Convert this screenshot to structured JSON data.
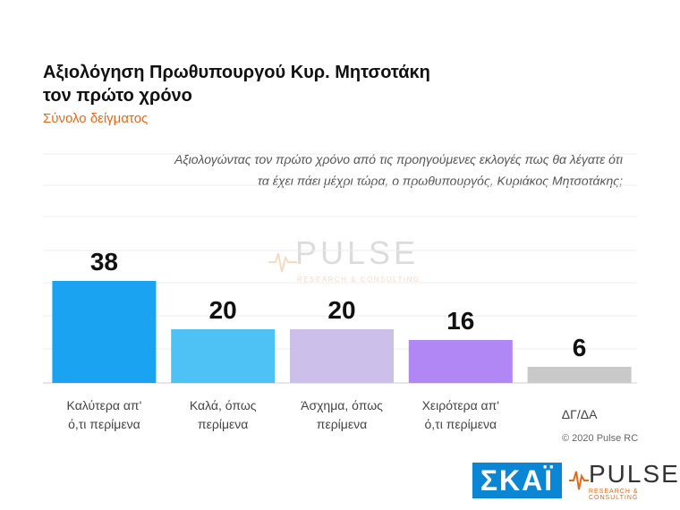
{
  "title_line1": "Αξιολόγηση Πρωθυπουργού Κυρ. Μητσοτάκη",
  "title_line2": "τον πρώτο χρόνο",
  "subtitle": "Σύνολο δείγματος",
  "question_line1": "Αξιολογώντας τον πρώτο χρόνο από τις προηγούμενες εκλογές πως θα λέγατε ότι",
  "question_line2": "τα έχει πάει μέχρι τώρα, ο πρωθυπουργός, Κυριάκος Μητσοτάκης;",
  "copyright": "© 2020 Pulse RC",
  "logos": {
    "skai": "ΣΚΑΪ",
    "pulse_word": "PULSE",
    "pulse_tag": "RESEARCH & CONSULTING",
    "pulse_color": "#e06a1c",
    "skai_color": "#0a86d4"
  },
  "chart_data": {
    "type": "bar",
    "categories": [
      [
        "Καλύτερα απ'",
        "ό,τι περίμενα"
      ],
      [
        "Καλά, όπως",
        "περίμενα"
      ],
      [
        "Άσχημα, όπως",
        "περίμενα"
      ],
      [
        "Χειρότερα απ'",
        "ό,τι περίμενα"
      ],
      [
        "ΔΓ/ΔΑ"
      ]
    ],
    "values": [
      38,
      20,
      20,
      16,
      6
    ],
    "colors": [
      "#1aa3f0",
      "#4ec2f5",
      "#ccc0ea",
      "#b087f5",
      "#c9c9c9"
    ],
    "ylim": [
      0,
      50
    ],
    "grid": true
  }
}
